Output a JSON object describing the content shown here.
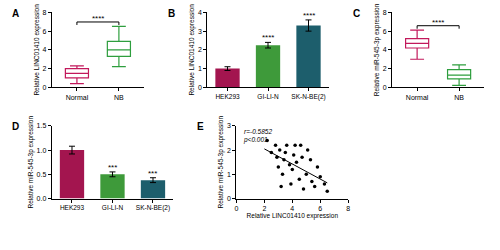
{
  "chart_data": [
    {
      "panel": "A",
      "type": "box",
      "ylabel": "Relative LINC01410 expression",
      "categories": [
        "Normal",
        "NB"
      ],
      "min": [
        0.4,
        2.2
      ],
      "q1": [
        1.0,
        3.3
      ],
      "median": [
        1.5,
        4.0
      ],
      "q3": [
        2.0,
        4.9
      ],
      "max": [
        2.3,
        6.5
      ],
      "colors": [
        "#c2185b",
        "#2e9e3e"
      ],
      "ylim": [
        0,
        8
      ],
      "yticks": [
        0,
        2,
        4,
        6,
        8
      ],
      "significance": "****"
    },
    {
      "panel": "B",
      "type": "bar",
      "ylabel": "Relative LINC01410 expression",
      "categories": [
        "HEK293",
        "GI-LI-N",
        "SK-N-BE(2)"
      ],
      "values": [
        1.0,
        2.25,
        3.3
      ],
      "errors": [
        0.1,
        0.15,
        0.3
      ],
      "colors": [
        "#a3154f",
        "#3e9a3a",
        "#1d5e6c"
      ],
      "ylim": [
        0,
        4
      ],
      "yticks": [
        0,
        1,
        2,
        3,
        4
      ],
      "significance": [
        null,
        "****",
        "****"
      ]
    },
    {
      "panel": "C",
      "type": "box",
      "ylabel": "Relative miR-545-3p expression",
      "categories": [
        "Normal",
        "NB"
      ],
      "min": [
        3.0,
        0.2
      ],
      "q1": [
        4.2,
        0.9
      ],
      "median": [
        4.7,
        1.3
      ],
      "q3": [
        5.2,
        1.9
      ],
      "max": [
        6.1,
        2.4
      ],
      "colors": [
        "#c2185b",
        "#2e9e3e"
      ],
      "ylim": [
        0,
        8
      ],
      "yticks": [
        0,
        2,
        4,
        6,
        8
      ],
      "significance": "****"
    },
    {
      "panel": "D",
      "type": "bar",
      "ylabel": "Relative miR-545-3p expression",
      "categories": [
        "HEK293",
        "GI-LI-N",
        "SK-N-BE(2)"
      ],
      "values": [
        1.0,
        0.5,
        0.38
      ],
      "errors": [
        0.08,
        0.05,
        0.05
      ],
      "colors": [
        "#a3154f",
        "#3e9a3a",
        "#1d5e6c"
      ],
      "ylim": [
        0,
        1.5
      ],
      "yticks": [
        {
          "value": 0,
          "label": "0.0"
        },
        {
          "value": 0.5,
          "label": "0.5"
        },
        {
          "value": 1,
          "label": "1.0"
        },
        {
          "value": 1.5,
          "label": "1.5"
        }
      ],
      "significance": [
        null,
        "***",
        "***"
      ]
    },
    {
      "panel": "E",
      "type": "scatter",
      "xlabel": "Relative LINC01410 expression",
      "ylabel": "Relative miR-545-3p expression",
      "x": [
        2.2,
        2.5,
        2.8,
        3.0,
        3.1,
        3.3,
        3.4,
        3.5,
        3.6,
        3.8,
        3.9,
        4.0,
        4.2,
        4.3,
        4.5,
        4.6,
        4.7,
        4.8,
        5.0,
        5.1,
        5.3,
        5.4,
        5.6,
        5.8,
        6.0,
        6.3,
        6.5,
        3.2,
        2.9,
        4.1
      ],
      "y": [
        2.4,
        1.9,
        2.2,
        1.3,
        2.0,
        1.0,
        1.6,
        1.9,
        2.2,
        1.4,
        0.6,
        1.2,
        2.2,
        1.5,
        0.8,
        2.2,
        1.7,
        0.4,
        1.0,
        2.0,
        1.6,
        0.7,
        0.5,
        1.3,
        0.9,
        0.6,
        0.3,
        0.5,
        1.7,
        1.8
      ],
      "color": "#000000",
      "trendline": {
        "x": [
          2.0,
          6.5
        ],
        "y": [
          2.05,
          0.65
        ]
      },
      "annotations": [
        "r=-0.5852",
        "p<0.001"
      ],
      "xlim": [
        0,
        8
      ],
      "xticks": [
        0,
        2,
        4,
        6,
        8
      ],
      "ylim": [
        0,
        3
      ],
      "yticks": [
        0,
        1,
        2,
        3
      ]
    }
  ]
}
